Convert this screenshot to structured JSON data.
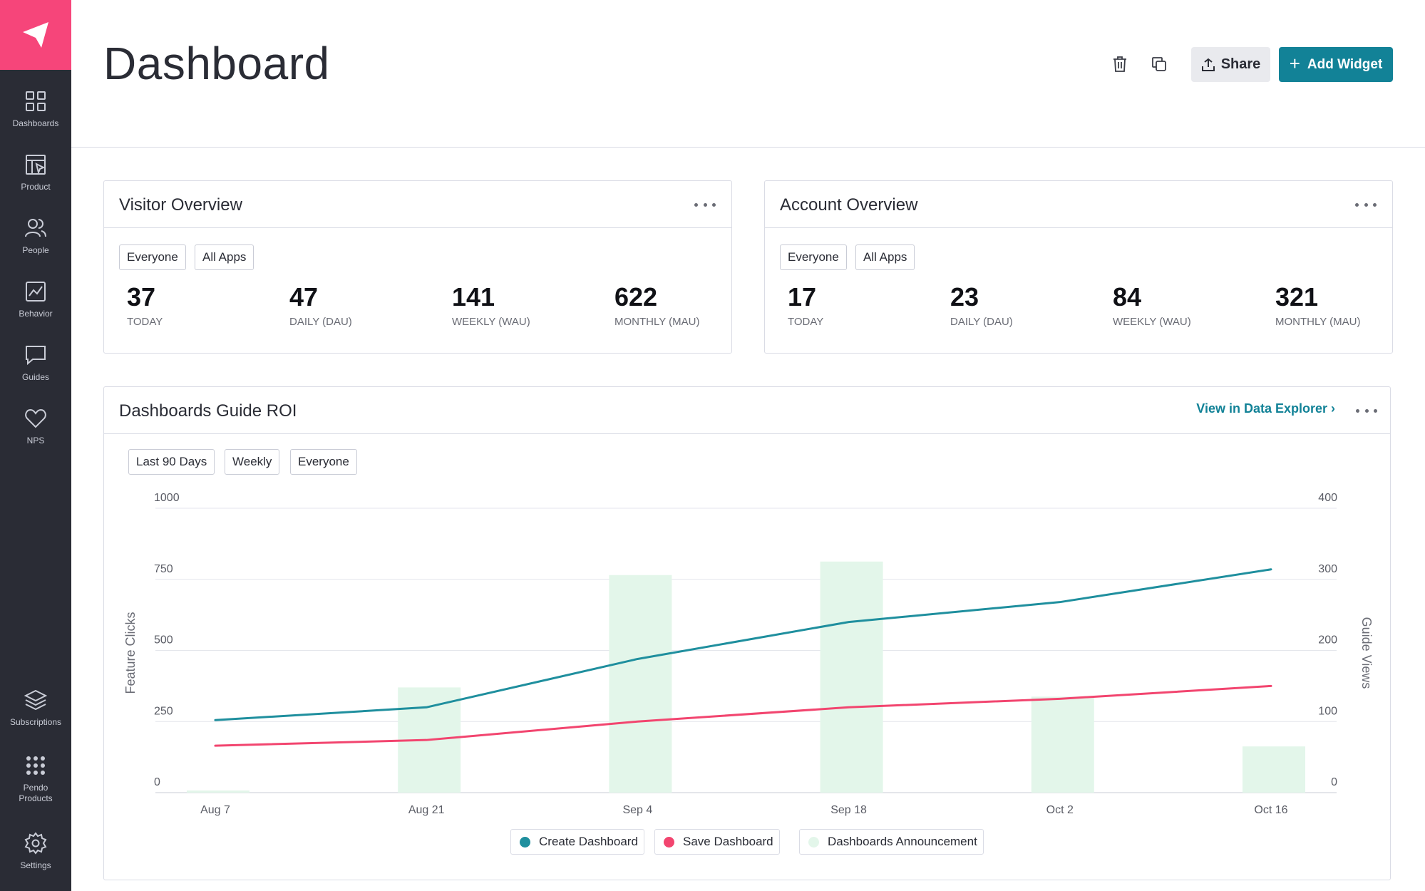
{
  "sidebar": {
    "items": [
      {
        "label": "Dashboards",
        "icon": "grid-icon"
      },
      {
        "label": "Product",
        "icon": "product-icon"
      },
      {
        "label": "People",
        "icon": "people-icon"
      },
      {
        "label": "Behavior",
        "icon": "chart-icon"
      },
      {
        "label": "Guides",
        "icon": "message-icon"
      },
      {
        "label": "NPS",
        "icon": "heart-icon"
      },
      {
        "label": "Subscriptions",
        "icon": "layers-icon"
      },
      {
        "label": "Pendo Products",
        "icon": "dots-grid-icon"
      },
      {
        "label": "Settings",
        "icon": "gear-icon"
      }
    ]
  },
  "header": {
    "title": "Dashboard",
    "share_label": "Share",
    "add_widget_label": "Add Widget"
  },
  "visitor_overview": {
    "title": "Visitor Overview",
    "filters": [
      "Everyone",
      "All Apps"
    ],
    "metrics": [
      {
        "value": "37",
        "label": "TODAY"
      },
      {
        "value": "47",
        "label": "DAILY (DAU)"
      },
      {
        "value": "141",
        "label": "WEEKLY (WAU)"
      },
      {
        "value": "622",
        "label": "MONTHLY (MAU)"
      }
    ]
  },
  "account_overview": {
    "title": "Account Overview",
    "filters": [
      "Everyone",
      "All Apps"
    ],
    "metrics": [
      {
        "value": "17",
        "label": "TODAY"
      },
      {
        "value": "23",
        "label": "DAILY (DAU)"
      },
      {
        "value": "84",
        "label": "WEEKLY (WAU)"
      },
      {
        "value": "321",
        "label": "MONTHLY (MAU)"
      }
    ]
  },
  "guide_roi": {
    "title": "Dashboards Guide ROI",
    "link_label": "View in Data Explorer ›",
    "filters": [
      "Last 90 Days",
      "Weekly",
      "Everyone"
    ]
  },
  "colors": {
    "brand_pink": "#f6457a",
    "teal": "#128297",
    "line_teal": "#1f8f9e",
    "line_pink": "#f2456f",
    "bar_green": "#e3f6ea"
  },
  "chart_data": {
    "type": "bar",
    "categories": [
      "Aug 7",
      "Aug 21",
      "Sep 4",
      "Sep 18",
      "Oct 2",
      "Oct 16"
    ],
    "ylabel": "Feature Clicks",
    "y2label": "Guide Views",
    "ylim": [
      0,
      1000
    ],
    "y2lim": [
      0,
      400
    ],
    "yticks": [
      "0",
      "250",
      "500",
      "750",
      "1000"
    ],
    "y2ticks": [
      "0",
      "100",
      "200",
      "300",
      "400"
    ],
    "grid": true,
    "legend_position": "bottom",
    "series": [
      {
        "name": "Create Dashboard",
        "type": "line",
        "axis": "left",
        "color": "#1f8f9e",
        "values": [
          255,
          300,
          470,
          600,
          670,
          785
        ]
      },
      {
        "name": "Save Dashboard",
        "type": "line",
        "axis": "left",
        "color": "#f2456f",
        "values": [
          165,
          185,
          250,
          300,
          330,
          375
        ]
      },
      {
        "name": "Dashboards Announcement",
        "type": "bar",
        "axis": "right",
        "color": "#e3f6ea",
        "values": [
          3,
          148,
          306,
          325,
          135,
          65
        ]
      }
    ]
  }
}
